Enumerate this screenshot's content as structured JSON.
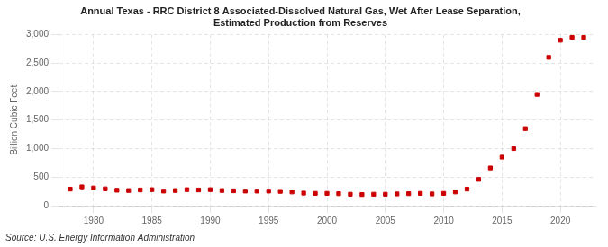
{
  "chart_data": {
    "type": "scatter",
    "title": "Annual Texas - RRC District 8 Associated-Dissolved Natural Gas, Wet After Lease Separation,\nEstimated Production from Reserves",
    "ylabel": "Billion Cubic Feet",
    "annotations": [
      "Source: U.S. Energy Information Administration"
    ],
    "x": [
      1978,
      1979,
      1980,
      1981,
      1982,
      1983,
      1984,
      1985,
      1986,
      1987,
      1988,
      1989,
      1990,
      1991,
      1992,
      1993,
      1994,
      1995,
      1996,
      1997,
      1998,
      1999,
      2000,
      2001,
      2002,
      2003,
      2004,
      2005,
      2006,
      2007,
      2008,
      2009,
      2010,
      2011,
      2012,
      2013,
      2014,
      2015,
      2016,
      2017,
      2018,
      2019,
      2020,
      2021,
      2022
    ],
    "values": [
      290,
      330,
      310,
      295,
      270,
      265,
      275,
      280,
      255,
      265,
      280,
      275,
      280,
      265,
      260,
      255,
      255,
      255,
      250,
      240,
      220,
      215,
      215,
      210,
      200,
      195,
      200,
      200,
      205,
      210,
      215,
      205,
      215,
      240,
      290,
      460,
      660,
      850,
      1000,
      1350,
      1950,
      2600,
      2900,
      2950,
      2950
    ],
    "color": "#cc0000",
    "marker": "square",
    "xlim": [
      1977,
      2023
    ],
    "ylim": [
      0,
      3000
    ],
    "xticks": [
      1980,
      1985,
      1990,
      1995,
      2000,
      2005,
      2010,
      2015,
      2020
    ],
    "yticks": [
      0,
      500,
      {
        "value": 1000,
        "label": "1,000"
      },
      {
        "value": 1500,
        "label": "1,500"
      },
      {
        "value": 2000,
        "label": "2,000"
      },
      {
        "value": 2500,
        "label": "2,500"
      },
      {
        "value": 3000,
        "label": "3,000"
      }
    ],
    "grid": true
  }
}
